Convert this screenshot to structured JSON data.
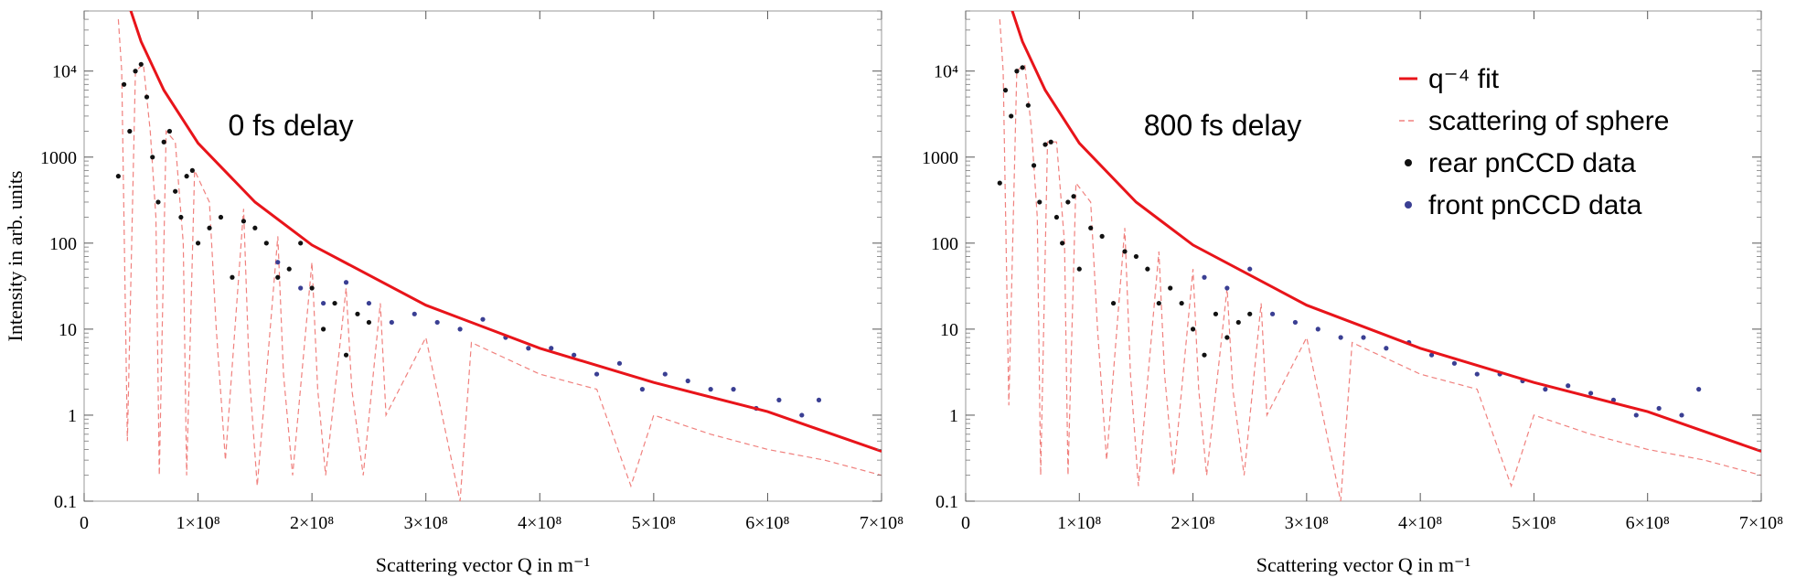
{
  "colors": {
    "fit": "#e8141a",
    "sphere": "#f0817e",
    "rear": "#111111",
    "front": "#3a3f93",
    "frame": "#9a9a9a"
  },
  "chart_data": [
    {
      "type": "scatter",
      "title": "0 fs delay",
      "xlabel": "Scattering vector Q in m⁻¹",
      "ylabel": "Intensity in arb. units",
      "xscale": "linear",
      "yscale": "log",
      "xlim": [
        0,
        700000000
      ],
      "ylim": [
        0.1,
        50000
      ],
      "x_tick_labels": [
        "0",
        "1×10⁸",
        "2×10⁸",
        "3×10⁸",
        "4×10⁸",
        "5×10⁸",
        "6×10⁸",
        "7×10⁸"
      ],
      "y_tick_labels": [
        "0.1",
        "1",
        "10",
        "100",
        "1000",
        "10⁴"
      ],
      "grid": false,
      "series": [
        {
          "name": "q⁻⁴ fit",
          "kind": "line",
          "x": [
            40000000,
            50000000,
            70000000,
            100000000,
            150000000,
            200000000,
            300000000,
            400000000,
            500000000,
            600000000,
            700000000
          ],
          "y": [
            55000,
            22000,
            6000,
            1450,
            300,
            95,
            19,
            6,
            2.4,
            1.1,
            0.38
          ]
        },
        {
          "name": "scattering of sphere",
          "kind": "dashed-line",
          "x": [
            30000000,
            33000000,
            38000000,
            45000000,
            52000000,
            58000000,
            63000000,
            66000000,
            72000000,
            80000000,
            87000000,
            90000000,
            97000000,
            110000000,
            116000000,
            124000000,
            140000000,
            145000000,
            152000000,
            170000000,
            175000000,
            183000000,
            200000000,
            205000000,
            212000000,
            230000000,
            235000000,
            245000000,
            260000000,
            265000000,
            300000000,
            330000000,
            340000000,
            400000000,
            450000000,
            480000000,
            500000000,
            550000000,
            600000000,
            650000000,
            700000000
          ],
          "y": [
            40000,
            10000,
            0.5,
            10000,
            12000,
            2000,
            200,
            0.2,
            2000,
            1500,
            100,
            0.2,
            700,
            300,
            10,
            0.3,
            250,
            3,
            0.15,
            120,
            3,
            0.2,
            60,
            2,
            0.2,
            30,
            2,
            0.2,
            20,
            1,
            8,
            0.1,
            7,
            3,
            2,
            0.15,
            1,
            0.6,
            0.4,
            0.3,
            0.2
          ]
        },
        {
          "name": "rear pnCCD data",
          "kind": "points",
          "x": [
            30000000,
            35000000,
            40000000,
            45000000,
            50000000,
            55000000,
            60000000,
            65000000,
            70000000,
            75000000,
            80000000,
            85000000,
            90000000,
            95000000,
            100000000,
            110000000,
            120000000,
            130000000,
            140000000,
            150000000,
            160000000,
            170000000,
            180000000,
            190000000,
            200000000,
            210000000,
            220000000,
            230000000,
            240000000,
            250000000
          ],
          "y": [
            600,
            7000,
            2000,
            10000,
            12000,
            5000,
            1000,
            300,
            1500,
            2000,
            400,
            200,
            600,
            700,
            100,
            150,
            200,
            40,
            180,
            150,
            100,
            40,
            50,
            100,
            30,
            10,
            20,
            5,
            15,
            12
          ]
        },
        {
          "name": "front pnCCD data",
          "kind": "points",
          "x": [
            170000000,
            190000000,
            210000000,
            230000000,
            250000000,
            270000000,
            290000000,
            310000000,
            330000000,
            350000000,
            370000000,
            390000000,
            410000000,
            430000000,
            450000000,
            470000000,
            490000000,
            510000000,
            530000000,
            550000000,
            570000000,
            590000000,
            610000000,
            630000000,
            645000000
          ],
          "y": [
            60,
            30,
            20,
            35,
            20,
            12,
            15,
            12,
            10,
            13,
            8,
            6,
            6,
            5,
            3,
            4,
            2,
            3,
            2.5,
            2,
            2,
            1.2,
            1.5,
            1,
            1.5
          ]
        }
      ]
    },
    {
      "type": "scatter",
      "title": "800 fs delay",
      "xlabel": "Scattering vector Q in m⁻¹",
      "ylabel": "",
      "xscale": "linear",
      "yscale": "log",
      "xlim": [
        0,
        700000000
      ],
      "ylim": [
        0.1,
        50000
      ],
      "x_tick_labels": [
        "0",
        "1×10⁸",
        "2×10⁸",
        "3×10⁸",
        "4×10⁸",
        "5×10⁸",
        "6×10⁸",
        "7×10⁸"
      ],
      "y_tick_labels": [
        "0.1",
        "1",
        "10",
        "100",
        "1000",
        "10⁴"
      ],
      "grid": false,
      "legend": {
        "position": "top-right",
        "entries": [
          "q⁻⁴ fit",
          "scattering of sphere",
          "rear pnCCD data",
          "front pnCCD data"
        ]
      },
      "series": [
        {
          "name": "q⁻⁴ fit",
          "kind": "line",
          "x": [
            40000000,
            50000000,
            70000000,
            100000000,
            150000000,
            200000000,
            300000000,
            400000000,
            500000000,
            600000000,
            700000000
          ],
          "y": [
            55000,
            22000,
            6000,
            1450,
            300,
            95,
            19,
            6,
            2.4,
            1.1,
            0.38
          ]
        },
        {
          "name": "scattering of sphere",
          "kind": "dashed-line",
          "x": [
            30000000,
            33000000,
            38000000,
            45000000,
            52000000,
            58000000,
            63000000,
            66000000,
            72000000,
            80000000,
            87000000,
            90000000,
            97000000,
            110000000,
            116000000,
            124000000,
            140000000,
            145000000,
            152000000,
            170000000,
            175000000,
            183000000,
            200000000,
            205000000,
            212000000,
            230000000,
            235000000,
            245000000,
            260000000,
            265000000,
            300000000,
            330000000,
            340000000,
            400000000,
            450000000,
            480000000,
            500000000,
            550000000,
            600000000,
            650000000,
            700000000
          ],
          "y": [
            40000,
            10000,
            1.3,
            10000,
            12000,
            2000,
            200,
            0.2,
            1500,
            1500,
            100,
            0.2,
            500,
            300,
            10,
            0.3,
            150,
            3,
            0.15,
            80,
            3,
            0.2,
            50,
            2,
            0.2,
            30,
            2,
            0.2,
            20,
            1,
            8,
            0.1,
            7,
            3,
            2,
            0.15,
            1,
            0.6,
            0.4,
            0.3,
            0.2
          ]
        },
        {
          "name": "rear pnCCD data",
          "kind": "points",
          "x": [
            30000000,
            35000000,
            40000000,
            45000000,
            50000000,
            55000000,
            60000000,
            65000000,
            70000000,
            75000000,
            80000000,
            85000000,
            90000000,
            95000000,
            100000000,
            110000000,
            120000000,
            130000000,
            140000000,
            150000000,
            160000000,
            170000000,
            180000000,
            190000000,
            200000000,
            210000000,
            220000000,
            230000000,
            240000000,
            250000000
          ],
          "y": [
            500,
            6000,
            3000,
            10000,
            11000,
            4000,
            800,
            300,
            1400,
            1500,
            200,
            100,
            300,
            350,
            50,
            150,
            120,
            20,
            80,
            70,
            50,
            20,
            30,
            20,
            10,
            5,
            15,
            8,
            12,
            15
          ]
        },
        {
          "name": "front pnCCD data",
          "kind": "points",
          "x": [
            210000000,
            230000000,
            250000000,
            270000000,
            290000000,
            310000000,
            330000000,
            350000000,
            370000000,
            390000000,
            410000000,
            430000000,
            450000000,
            470000000,
            490000000,
            510000000,
            530000000,
            550000000,
            570000000,
            590000000,
            610000000,
            630000000,
            645000000
          ],
          "y": [
            40,
            30,
            50,
            15,
            12,
            10,
            8,
            8,
            6,
            7,
            5,
            4,
            3,
            3,
            2.5,
            2,
            2.2,
            1.8,
            1.5,
            1,
            1.2,
            1,
            2
          ]
        }
      ]
    }
  ]
}
